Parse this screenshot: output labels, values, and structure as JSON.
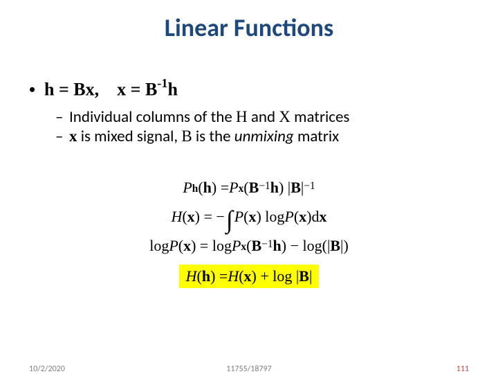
{
  "colors": {
    "title": "#1f497d",
    "body_text": "#000000",
    "footer_gray": "#7f7f7f",
    "footer_red": "#c0504d",
    "highlight_bg": "#ffff00",
    "background": "#ffffff"
  },
  "title": "Linear Functions",
  "lvl1": {
    "bullet": "•",
    "text_parts": {
      "p1": "h = Bx,",
      "gap": "    ",
      "p2": "x = B",
      "sup": "-1",
      "p3": "h"
    }
  },
  "lvl2": [
    {
      "dash": "–",
      "runs": [
        {
          "t": "Individual columns of the ",
          "cls": ""
        },
        {
          "t": "H",
          "cls": "serif-b"
        },
        {
          "t": " and ",
          "cls": ""
        },
        {
          "t": "X",
          "cls": "serif-b"
        },
        {
          "t": " matrices",
          "cls": ""
        }
      ]
    },
    {
      "dash": "–",
      "runs": [
        {
          "t": "x",
          "cls": "serif-b bf"
        },
        {
          "t": " is mixed signal, ",
          "cls": ""
        },
        {
          "t": "B",
          "cls": "serif-b"
        },
        {
          "t": " is the ",
          "cls": ""
        },
        {
          "t": "unmixing",
          "cls": "italic"
        },
        {
          "t": " matrix",
          "cls": ""
        }
      ]
    }
  ],
  "equations": {
    "eq1": {
      "P": "P",
      "sub_h": "h",
      "lp": "(",
      "bh": "h",
      "rp": ") = ",
      "Px": "P",
      "sub_x": "x",
      "lp2": "(",
      "Binv": "B",
      "sup_m1": "−1",
      "bh2": "h",
      "rp2": ") | ",
      "B": "B",
      "bar2": " |",
      "sup_m1b": "−1"
    },
    "eq2": {
      "H": "H",
      "lp": "(",
      "bx": "x",
      "rp": ") = −",
      "int": "∫",
      "P": "P",
      "lp2": "(",
      "bx2": "x",
      "rp2": ") log ",
      "P2": "P",
      "lp3": "(",
      "bx3": "x",
      "rp3": ")d",
      "bx4": "x"
    },
    "eq3": {
      "log": "log ",
      "P": "P",
      "lp": "(",
      "bx": "x",
      "rp": ") = log ",
      "Px": "P",
      "sub_x": "x",
      "lp2": "(",
      "Binv": "B",
      "sup_m1": "−1",
      "bh": "h",
      "rp2": ") − log(| ",
      "B": "B",
      "rp3": " |)"
    },
    "eq4": {
      "H": "H",
      "lp": "(",
      "bh": "h",
      "rp": ") = ",
      "H2": "H",
      "lp2": "(",
      "bx": "x",
      "rp2": ") + log | ",
      "B": "B",
      "rp3": " |"
    }
  },
  "footer": {
    "date": "10/2/2020",
    "course": "11755/18797",
    "pagenum": "111"
  }
}
